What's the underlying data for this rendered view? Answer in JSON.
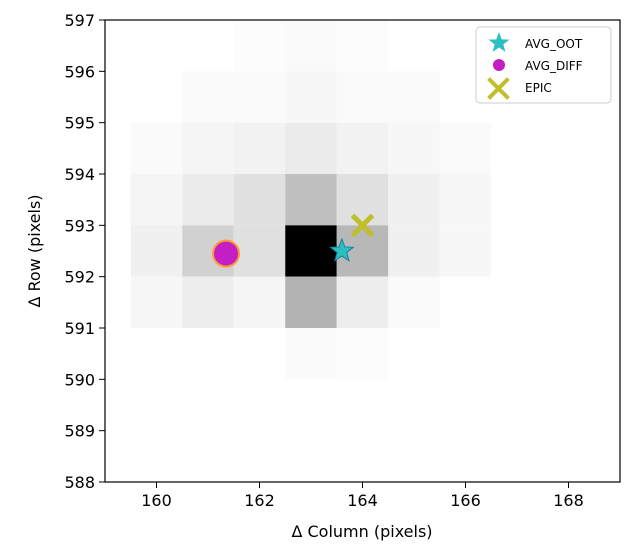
{
  "chart_data": {
    "type": "heatmap",
    "xlabel": "Δ Column (pixels)",
    "ylabel": "Δ Row (pixels)",
    "xlim": [
      159,
      169
    ],
    "ylim": [
      588,
      597
    ],
    "x_ticks": [
      "160",
      "162",
      "164",
      "166",
      "168"
    ],
    "y_ticks": [
      "588",
      "589",
      "590",
      "591",
      "592",
      "593",
      "594",
      "595",
      "596",
      "597"
    ],
    "colormap": "grayscale (white = low, black = high)",
    "grid": false,
    "pixels": [
      {
        "col": 161,
        "row": 595,
        "value": 0.02
      },
      {
        "col": 162,
        "row": 595,
        "value": 0.02
      },
      {
        "col": 163,
        "row": 595,
        "value": 0.03
      },
      {
        "col": 164,
        "row": 595,
        "value": 0.02
      },
      {
        "col": 165,
        "row": 595,
        "value": 0.02
      },
      {
        "col": 162,
        "row": 596,
        "value": 0.01
      },
      {
        "col": 163,
        "row": 596,
        "value": 0.02
      },
      {
        "col": 164,
        "row": 596,
        "value": 0.01
      },
      {
        "col": 160,
        "row": 594,
        "value": 0.02
      },
      {
        "col": 161,
        "row": 594,
        "value": 0.04
      },
      {
        "col": 162,
        "row": 594,
        "value": 0.05
      },
      {
        "col": 163,
        "row": 594,
        "value": 0.08
      },
      {
        "col": 164,
        "row": 594,
        "value": 0.05
      },
      {
        "col": 165,
        "row": 594,
        "value": 0.03
      },
      {
        "col": 166,
        "row": 594,
        "value": 0.02
      },
      {
        "col": 160,
        "row": 593,
        "value": 0.04
      },
      {
        "col": 161,
        "row": 593,
        "value": 0.08
      },
      {
        "col": 162,
        "row": 593,
        "value": 0.12
      },
      {
        "col": 163,
        "row": 593,
        "value": 0.25
      },
      {
        "col": 164,
        "row": 593,
        "value": 0.12
      },
      {
        "col": 165,
        "row": 593,
        "value": 0.06
      },
      {
        "col": 166,
        "row": 593,
        "value": 0.03
      },
      {
        "col": 160,
        "row": 592,
        "value": 0.06
      },
      {
        "col": 161,
        "row": 592,
        "value": 0.18
      },
      {
        "col": 162,
        "row": 592,
        "value": 0.12
      },
      {
        "col": 163,
        "row": 592,
        "value": 1.0
      },
      {
        "col": 164,
        "row": 592,
        "value": 0.28
      },
      {
        "col": 165,
        "row": 592,
        "value": 0.06
      },
      {
        "col": 166,
        "row": 592,
        "value": 0.03
      },
      {
        "col": 160,
        "row": 591,
        "value": 0.03
      },
      {
        "col": 161,
        "row": 591,
        "value": 0.07
      },
      {
        "col": 162,
        "row": 591,
        "value": 0.04
      },
      {
        "col": 163,
        "row": 591,
        "value": 0.3
      },
      {
        "col": 164,
        "row": 591,
        "value": 0.07
      },
      {
        "col": 165,
        "row": 591,
        "value": 0.02
      },
      {
        "col": 163,
        "row": 590,
        "value": 0.02
      },
      {
        "col": 164,
        "row": 590,
        "value": 0.01
      }
    ],
    "series": [
      {
        "name": "AVG_OOT",
        "marker": "star",
        "color": "#2bbfbf",
        "points": [
          {
            "x": 163.6,
            "y": 592.5
          }
        ]
      },
      {
        "name": "AVG_DIFF",
        "marker": "circle",
        "color": "#c41fc4",
        "edge_color": "#ff9933",
        "points": [
          {
            "x": 161.35,
            "y": 592.45
          }
        ]
      },
      {
        "name": "EPIC",
        "marker": "x",
        "color": "#bfbf2b",
        "points": [
          {
            "x": 164.0,
            "y": 593.0
          }
        ]
      }
    ],
    "legend_position": "top-right"
  }
}
